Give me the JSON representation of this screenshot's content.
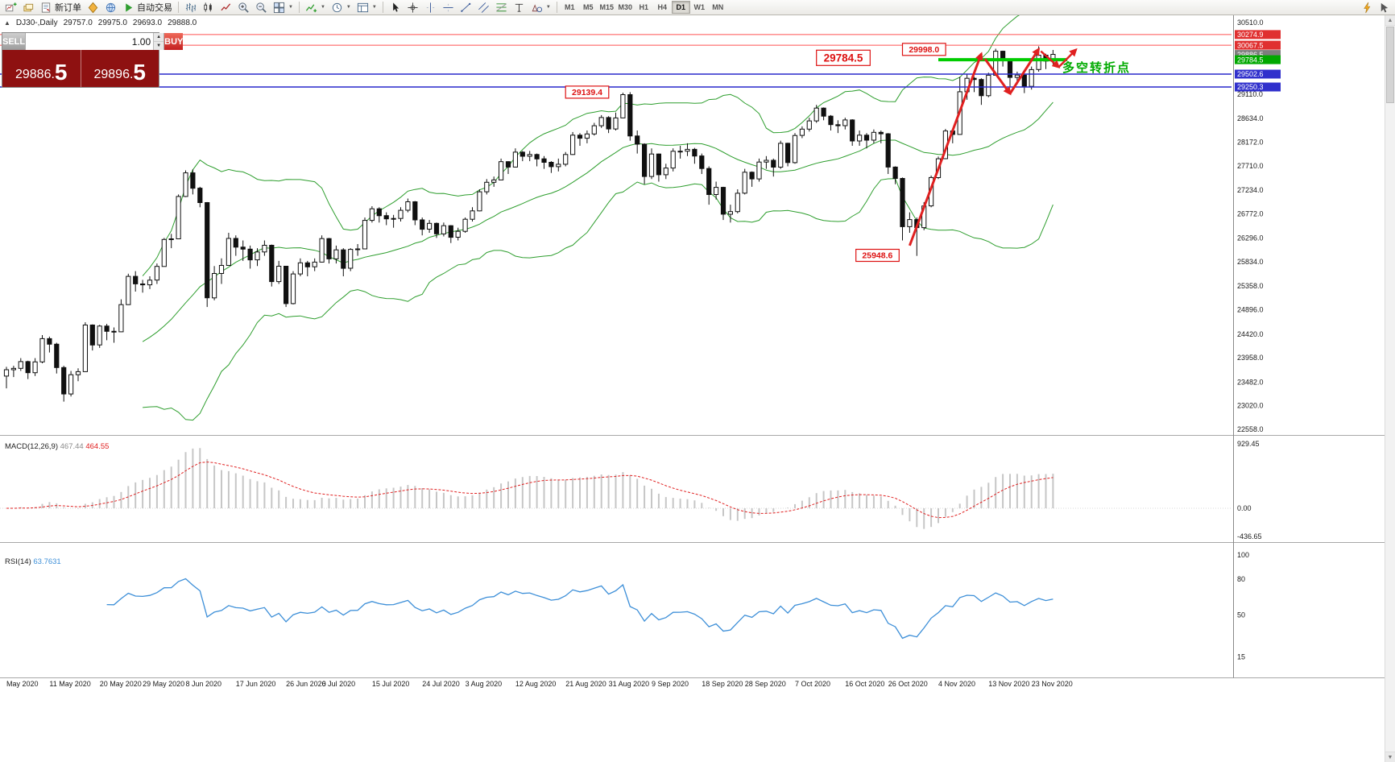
{
  "toolbar": {
    "groups": [
      {
        "items": [
          {
            "name": "new-chart-button",
            "icon": "chart-plus-icon"
          },
          {
            "name": "profiles-button",
            "icon": "layers-icon"
          },
          {
            "name": "new-order-button",
            "icon": "order-icon",
            "label": "新订单"
          },
          {
            "name": "metaeditor-button",
            "icon": "diamond-icon"
          },
          {
            "name": "community-button",
            "icon": "globe-icon"
          },
          {
            "name": "autotrading-button",
            "icon": "play-icon",
            "label": "自动交易"
          }
        ]
      },
      {
        "items": [
          {
            "name": "bar-chart-button",
            "icon": "bars-icon"
          },
          {
            "name": "candlestick-button",
            "icon": "candles-icon"
          },
          {
            "name": "line-chart-button",
            "icon": "line-icon"
          },
          {
            "name": "zoom-in-button",
            "icon": "zoom-in-icon"
          },
          {
            "name": "zoom-out-button",
            "icon": "zoom-out-icon"
          },
          {
            "name": "tile-windows-button",
            "icon": "grid-icon",
            "dropdown": true
          }
        ]
      },
      {
        "items": [
          {
            "name": "indicators-button",
            "icon": "indicator-icon",
            "dropdown": true
          },
          {
            "name": "periods-button",
            "icon": "clock-icon",
            "dropdown": true
          },
          {
            "name": "templates-button",
            "icon": "template-icon",
            "dropdown": true
          }
        ]
      },
      {
        "items": [
          {
            "name": "cursor-button",
            "icon": "cursor-icon"
          },
          {
            "name": "crosshair-button",
            "icon": "crosshair-icon"
          },
          {
            "name": "vertical-line-button",
            "icon": "vline-icon"
          },
          {
            "name": "horizontal-line-button",
            "icon": "hline-icon"
          },
          {
            "name": "trendline-button",
            "icon": "trendline-icon"
          },
          {
            "name": "channel-button",
            "icon": "channel-icon"
          },
          {
            "name": "fibonacci-button",
            "icon": "fibo-icon"
          },
          {
            "name": "text-button",
            "icon": "text-icon"
          },
          {
            "name": "arrows-button",
            "icon": "shapes-icon",
            "dropdown": true
          }
        ]
      }
    ],
    "timeframes": {
      "items": [
        "M1",
        "M5",
        "M15",
        "M30",
        "H1",
        "H4",
        "D1",
        "W1",
        "MN"
      ],
      "active": "D1"
    },
    "right_items": [
      {
        "name": "quick-trade-button",
        "icon": "lightning-icon"
      },
      {
        "name": "pointer-tool-button",
        "icon": "pointer-icon"
      }
    ]
  },
  "chart_header": {
    "collapse_icon": "▲",
    "symbol_period": "DJ30-,Daily",
    "open": "29757.0",
    "high": "29975.0",
    "low": "29693.0",
    "close": "29888.0"
  },
  "trade_panel": {
    "sell_label": "SELL",
    "buy_label": "BUY",
    "volume": "1.00",
    "sell_price_int": "29886.",
    "sell_price_frac": "5",
    "buy_price_int": "29896.",
    "buy_price_frac": "5"
  },
  "chart_data": {
    "type": "candlestick",
    "symbol": "DJ30-",
    "period": "Daily",
    "y_range": [
      22558.0,
      30510.0
    ],
    "y_axis_labels": [
      "30510.0",
      "29110.0",
      "28634.0",
      "28172.0",
      "27710.0",
      "27234.0",
      "26772.0",
      "26296.0",
      "25834.0",
      "25358.0",
      "24896.0",
      "24420.0",
      "23958.0",
      "23482.0",
      "23020.0",
      "22558.0"
    ],
    "bands_color": "#2e9e2e",
    "arrow_color": "#e02020",
    "callout_color": "#dd1111",
    "candles": [
      [
        23600,
        23780,
        23360,
        23724
      ],
      [
        23724,
        23800,
        23580,
        23750
      ],
      [
        23750,
        23950,
        23700,
        23883
      ],
      [
        23883,
        23900,
        23540,
        23665
      ],
      [
        23665,
        23950,
        23600,
        23876
      ],
      [
        23876,
        24400,
        23850,
        24331
      ],
      [
        24331,
        24370,
        24060,
        24222
      ],
      [
        24222,
        24250,
        23650,
        23765
      ],
      [
        23765,
        23800,
        23100,
        23248
      ],
      [
        23248,
        23700,
        23200,
        23625
      ],
      [
        23625,
        23750,
        23500,
        23685
      ],
      [
        23685,
        24650,
        23680,
        24597
      ],
      [
        24597,
        24610,
        24100,
        24207
      ],
      [
        24207,
        24600,
        24150,
        24576
      ],
      [
        24576,
        24620,
        24300,
        24474
      ],
      [
        24474,
        24550,
        24250,
        24465
      ],
      [
        24465,
        25100,
        24460,
        24995
      ],
      [
        24995,
        25600,
        24990,
        25548
      ],
      [
        25548,
        25650,
        25250,
        25401
      ],
      [
        25401,
        25480,
        25230,
        25383
      ],
      [
        25383,
        25550,
        25300,
        25475
      ],
      [
        25475,
        25800,
        25400,
        25743
      ],
      [
        25743,
        26300,
        25740,
        26270
      ],
      [
        26270,
        26380,
        26100,
        26282
      ],
      [
        26282,
        27150,
        26280,
        27111
      ],
      [
        27111,
        27620,
        27100,
        27572
      ],
      [
        27572,
        27640,
        27150,
        27272
      ],
      [
        27272,
        27300,
        26900,
        26990
      ],
      [
        26990,
        27000,
        24950,
        25128
      ],
      [
        25128,
        25750,
        25080,
        25605
      ],
      [
        25605,
        25900,
        25400,
        25763
      ],
      [
        25763,
        26400,
        25760,
        26290
      ],
      [
        26290,
        26350,
        25950,
        26120
      ],
      [
        26120,
        26250,
        25850,
        26080
      ],
      [
        26080,
        26150,
        25700,
        25871
      ],
      [
        25871,
        26100,
        25750,
        26025
      ],
      [
        26025,
        26250,
        25950,
        26156
      ],
      [
        26156,
        26170,
        25350,
        25446
      ],
      [
        25446,
        25850,
        25400,
        25746
      ],
      [
        25746,
        25750,
        24950,
        25016
      ],
      [
        25016,
        25650,
        25000,
        25596
      ],
      [
        25596,
        25900,
        25550,
        25813
      ],
      [
        25813,
        25850,
        25550,
        25735
      ],
      [
        25735,
        25900,
        25650,
        25827
      ],
      [
        25827,
        26350,
        25820,
        26287
      ],
      [
        26287,
        26300,
        25800,
        25890
      ],
      [
        25890,
        26150,
        25800,
        26067
      ],
      [
        26067,
        26100,
        25550,
        25706
      ],
      [
        25706,
        26100,
        25650,
        26075
      ],
      [
        26075,
        26180,
        25950,
        26086
      ],
      [
        26086,
        26700,
        26080,
        26643
      ],
      [
        26643,
        26920,
        26600,
        26870
      ],
      [
        26870,
        26900,
        26600,
        26735
      ],
      [
        26735,
        26800,
        26550,
        26672
      ],
      [
        26672,
        26750,
        26500,
        26681
      ],
      [
        26681,
        26900,
        26620,
        26840
      ],
      [
        26840,
        27070,
        26800,
        27006
      ],
      [
        27006,
        27020,
        26550,
        26652
      ],
      [
        26652,
        26700,
        26350,
        26470
      ],
      [
        26470,
        26650,
        26400,
        26584
      ],
      [
        26584,
        26600,
        26300,
        26379
      ],
      [
        26379,
        26600,
        26330,
        26539
      ],
      [
        26539,
        26550,
        26200,
        26313
      ],
      [
        26313,
        26500,
        26250,
        26428
      ],
      [
        26428,
        26700,
        26400,
        26664
      ],
      [
        26664,
        26900,
        26620,
        26828
      ],
      [
        26828,
        27250,
        26820,
        27201
      ],
      [
        27201,
        27450,
        27150,
        27387
      ],
      [
        27387,
        27500,
        27300,
        27433
      ],
      [
        27433,
        27850,
        27430,
        27791
      ],
      [
        27791,
        27800,
        27550,
        27686
      ],
      [
        27686,
        28050,
        27680,
        27977
      ],
      [
        27977,
        28000,
        27800,
        27897
      ],
      [
        27897,
        28000,
        27800,
        27931
      ],
      [
        27931,
        27950,
        27700,
        27845
      ],
      [
        27845,
        27900,
        27650,
        27778
      ],
      [
        27778,
        27800,
        27570,
        27693
      ],
      [
        27693,
        27850,
        27600,
        27740
      ],
      [
        27740,
        27980,
        27700,
        27930
      ],
      [
        27930,
        28370,
        27920,
        28308
      ],
      [
        28308,
        28350,
        28100,
        28248
      ],
      [
        28248,
        28400,
        28150,
        28332
      ],
      [
        28332,
        28550,
        28300,
        28493
      ],
      [
        28493,
        28700,
        28450,
        28654
      ],
      [
        28654,
        28680,
        28350,
        28430
      ],
      [
        28430,
        28750,
        28400,
        28646
      ],
      [
        28646,
        29139,
        28640,
        29101
      ],
      [
        29101,
        29150,
        28200,
        28293
      ],
      [
        28293,
        28400,
        27950,
        28133
      ],
      [
        28133,
        28150,
        27350,
        27501
      ],
      [
        27501,
        28050,
        27450,
        27940
      ],
      [
        27940,
        27950,
        27400,
        27535
      ],
      [
        27535,
        27750,
        27450,
        27666
      ],
      [
        27666,
        28050,
        27600,
        27994
      ],
      [
        27994,
        28100,
        27850,
        27996
      ],
      [
        27996,
        28150,
        27900,
        28032
      ],
      [
        28032,
        28060,
        27750,
        27902
      ],
      [
        27902,
        27950,
        27550,
        27657
      ],
      [
        27657,
        27700,
        26950,
        27148
      ],
      [
        27148,
        27400,
        27050,
        27288
      ],
      [
        27288,
        27300,
        26650,
        26763
      ],
      [
        26763,
        26950,
        26600,
        26815
      ],
      [
        26815,
        27250,
        26780,
        27174
      ],
      [
        27174,
        27650,
        27150,
        27584
      ],
      [
        27584,
        27600,
        27300,
        27453
      ],
      [
        27453,
        27850,
        27400,
        27782
      ],
      [
        27782,
        27900,
        27650,
        27817
      ],
      [
        27817,
        27850,
        27500,
        27683
      ],
      [
        27683,
        28200,
        27650,
        28149
      ],
      [
        28149,
        28160,
        27700,
        27773
      ],
      [
        27773,
        28350,
        27750,
        28303
      ],
      [
        28303,
        28480,
        28250,
        28426
      ],
      [
        28426,
        28650,
        28380,
        28587
      ],
      [
        28587,
        28900,
        28550,
        28838
      ],
      [
        28838,
        28850,
        28600,
        28680
      ],
      [
        28680,
        28700,
        28400,
        28514
      ],
      [
        28514,
        28600,
        28350,
        28494
      ],
      [
        28494,
        28650,
        28420,
        28606
      ],
      [
        28606,
        28620,
        28100,
        28195
      ],
      [
        28195,
        28400,
        28100,
        28309
      ],
      [
        28309,
        28350,
        28050,
        28211
      ],
      [
        28211,
        28420,
        28150,
        28364
      ],
      [
        28364,
        28400,
        28150,
        28336
      ],
      [
        28336,
        28350,
        27550,
        27685
      ],
      [
        27685,
        27700,
        27350,
        27463
      ],
      [
        27463,
        27480,
        26250,
        26520
      ],
      [
        26520,
        26800,
        26400,
        26659
      ],
      [
        26659,
        26700,
        25948,
        26502
      ],
      [
        26502,
        27000,
        26450,
        26925
      ],
      [
        26925,
        27520,
        26900,
        27480
      ],
      [
        27480,
        27890,
        27450,
        27848
      ],
      [
        27848,
        28430,
        27840,
        28390
      ],
      [
        28390,
        28400,
        28150,
        28323
      ],
      [
        28323,
        29450,
        28320,
        29158
      ],
      [
        29158,
        29500,
        29000,
        29421
      ],
      [
        29421,
        29450,
        29150,
        29397
      ],
      [
        29397,
        29420,
        28900,
        29080
      ],
      [
        29080,
        29530,
        29050,
        29480
      ],
      [
        29480,
        29998,
        29470,
        29950
      ],
      [
        29950,
        29960,
        29650,
        29783
      ],
      [
        29783,
        29800,
        29250,
        29438
      ],
      [
        29438,
        29550,
        29300,
        29483
      ],
      [
        29483,
        29500,
        29130,
        29263
      ],
      [
        29263,
        29650,
        29200,
        29591
      ],
      [
        29591,
        30046,
        29550,
        29872
      ],
      [
        29872,
        29900,
        29600,
        29757
      ],
      [
        29757,
        29975,
        29693,
        29888
      ]
    ],
    "x_labels": [
      {
        "text": "May 2020",
        "ci": 0
      },
      {
        "text": "11 May 2020",
        "ci": 6
      },
      {
        "text": "20 May 2020",
        "ci": 13
      },
      {
        "text": "29 May 2020",
        "ci": 19
      },
      {
        "text": "8 Jun 2020",
        "ci": 25
      },
      {
        "text": "17 Jun 2020",
        "ci": 32
      },
      {
        "text": "26 Jun 2020",
        "ci": 39
      },
      {
        "text": "6 Jul 2020",
        "ci": 44
      },
      {
        "text": "15 Jul 2020",
        "ci": 51
      },
      {
        "text": "24 Jul 2020",
        "ci": 58
      },
      {
        "text": "3 Aug 2020",
        "ci": 64
      },
      {
        "text": "12 Aug 2020",
        "ci": 71
      },
      {
        "text": "21 Aug 2020",
        "ci": 78
      },
      {
        "text": "31 Aug 2020",
        "ci": 84
      },
      {
        "text": "9 Sep 2020",
        "ci": 90
      },
      {
        "text": "18 Sep 2020",
        "ci": 97
      },
      {
        "text": "28 Sep 2020",
        "ci": 103
      },
      {
        "text": "7 Oct 2020",
        "ci": 110
      },
      {
        "text": "16 Oct 2020",
        "ci": 117
      },
      {
        "text": "26 Oct 2020",
        "ci": 123
      },
      {
        "text": "4 Nov 2020",
        "ci": 130
      },
      {
        "text": "13 Nov 2020",
        "ci": 137
      },
      {
        "text": "23 Nov 2020",
        "ci": 143
      }
    ],
    "price_lines": [
      {
        "label": "30274.9",
        "value": 30274.9,
        "color": "#ff5050",
        "badge_bg": "#e03030",
        "width": 1
      },
      {
        "label": "30067.5",
        "value": 30067.5,
        "color": "#ff5050",
        "badge_bg": "#e03030",
        "width": 1
      },
      {
        "label": "29502.6",
        "value": 29502.6,
        "color": "#2828cc",
        "badge_bg": "#3030cc",
        "width": 1.5
      },
      {
        "label": "29250.3",
        "value": 29250.3,
        "color": "#2828cc",
        "badge_bg": "#3030cc",
        "width": 1.5
      }
    ],
    "bid_badge": {
      "label": "29886.5",
      "value": 29886.5,
      "badge_bg": "#7d7d7d"
    },
    "support_line": {
      "label": "29784.5",
      "value": 29784.5,
      "color": "#00cc00",
      "badge_bg": "#00a800",
      "width": 4,
      "from_ci": 130,
      "to_ci": 148
    },
    "callouts": [
      {
        "text": "29139.4",
        "ci": 78,
        "value": 29150,
        "big": false
      },
      {
        "text": "29784.5",
        "ci": 113,
        "value": 29820,
        "big": true
      },
      {
        "text": "29998.0",
        "ci": 125,
        "value": 29985,
        "big": false
      },
      {
        "text": "25948.6",
        "ci": 118.5,
        "value": 25960,
        "big": false
      }
    ],
    "arrows": [
      {
        "from": [
          126,
          26150
        ],
        "to": [
          136,
          29900
        ],
        "w": 3
      },
      {
        "from": [
          136.5,
          29800
        ],
        "to": [
          140,
          29120
        ],
        "w": 3
      },
      {
        "from": [
          140,
          29120
        ],
        "to": [
          144,
          29990
        ],
        "w": 3
      },
      {
        "from": [
          144.3,
          29950
        ],
        "to": [
          146.8,
          29640
        ],
        "w": 2.5
      },
      {
        "from": [
          146.8,
          29640
        ],
        "to": [
          149.2,
          29980
        ],
        "w": 2.5
      }
    ],
    "text_labels": [
      {
        "text": "多空转折点",
        "ci": 147.3,
        "value": 29550,
        "color": "#00aa00",
        "size": 15
      }
    ],
    "macd": {
      "name": "MACD(12,26,9)",
      "main_value": "467.44",
      "signal_value": "464.55",
      "axis_labels": [
        "929.45",
        "0.00",
        "-436.65"
      ],
      "histogram_color": "#c6c6c6",
      "signal_color": "#e02020"
    },
    "rsi": {
      "name": "RSI(14)",
      "value": "63.7631",
      "axis_labels": [
        "100",
        "80",
        "50",
        "15"
      ],
      "line_color": "#3d8fd8"
    }
  }
}
